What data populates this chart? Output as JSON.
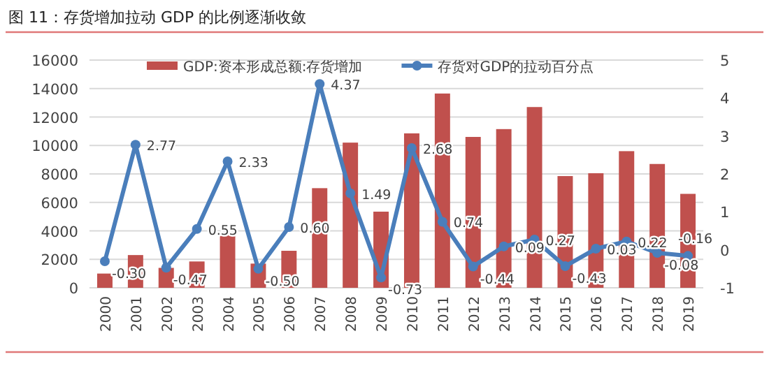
{
  "chart_data": {
    "type": "bar",
    "title": "图 11：存货增加拉动 GDP 的比例逐渐收敛",
    "categories": [
      "2000",
      "2001",
      "2002",
      "2003",
      "2004",
      "2005",
      "2006",
      "2007",
      "2008",
      "2009",
      "2010",
      "2011",
      "2012",
      "2013",
      "2014",
      "2015",
      "2016",
      "2017",
      "2018",
      "2019"
    ],
    "series": [
      {
        "name": "GDP:资本形成总额:存货增加",
        "color": "#c0504d",
        "values": [
          1000,
          2300,
          1400,
          1850,
          3750,
          1700,
          2600,
          7000,
          10200,
          5350,
          10850,
          13650,
          10600,
          11150,
          12700,
          7850,
          8050,
          9600,
          8700,
          6600
        ]
      },
      {
        "name": "存货对GDP的拉动百分点",
        "type": "line",
        "axis": "y2",
        "color": "#4a7ebb",
        "marker": "circle",
        "values": [
          -0.3,
          2.77,
          -0.47,
          0.55,
          2.33,
          -0.5,
          0.6,
          4.37,
          1.49,
          -0.73,
          2.68,
          0.74,
          -0.44,
          0.09,
          0.27,
          -0.43,
          0.03,
          0.22,
          -0.08,
          -0.16
        ],
        "value_labels": [
          "-0.30",
          "2.77",
          "-0.47",
          "0.55",
          "2.33",
          "-0.50",
          "0.60",
          "4.37",
          "1.49",
          "-0.73",
          "2.68",
          "0.74",
          "-0.44",
          "0.09",
          "0.27",
          "-0.43",
          "0.03",
          "0.22",
          "-0.08",
          "-0.16"
        ]
      }
    ],
    "ylim": [
      0,
      16000
    ],
    "yticks": [
      0,
      2000,
      4000,
      6000,
      8000,
      10000,
      12000,
      14000,
      16000
    ],
    "y2lim": [
      -1,
      5
    ],
    "y2ticks": [
      -1,
      0,
      1,
      2,
      3,
      4,
      5
    ],
    "grid": "y",
    "legend": "top"
  }
}
